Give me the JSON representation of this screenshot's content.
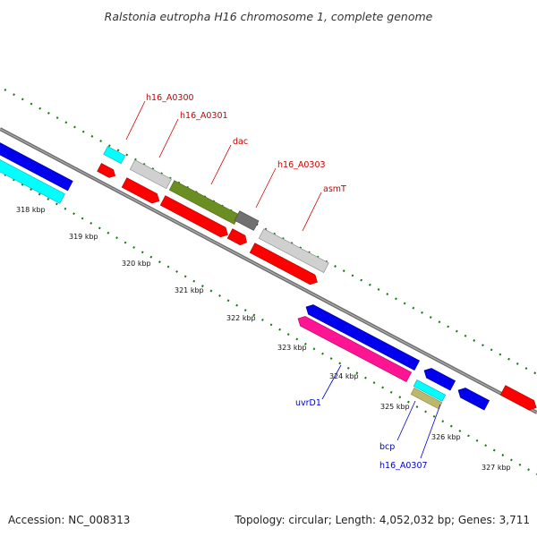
{
  "title": "Ralstonia eutropha H16 chromosome 1, complete genome",
  "footer": {
    "accession": "Accession: NC_008313",
    "summary": "Topology: circular; Length: 4,052,032 bp; Genes: 3,711"
  },
  "ticks": [
    "318 kbp",
    "319 kbp",
    "320 kbp",
    "321 kbp",
    "322 kbp",
    "323 kbp",
    "324 kbp",
    "325 kbp",
    "326 kbp",
    "327 kbp"
  ],
  "labels": {
    "h16_A0300": "h16_A0300",
    "h16_A0301": "h16_A0301",
    "dac": "dac",
    "h16_A0303": "h16_A0303",
    "asmT": "asmT",
    "uvrD1": "uvrD1",
    "bcp": "bcp",
    "h16_A0307": "h16_A0307"
  },
  "colors": {
    "forward_label": "#cc0000",
    "reverse_label": "#0000cc",
    "backbone": "#808080",
    "tick": "#1a7a1a"
  }
}
